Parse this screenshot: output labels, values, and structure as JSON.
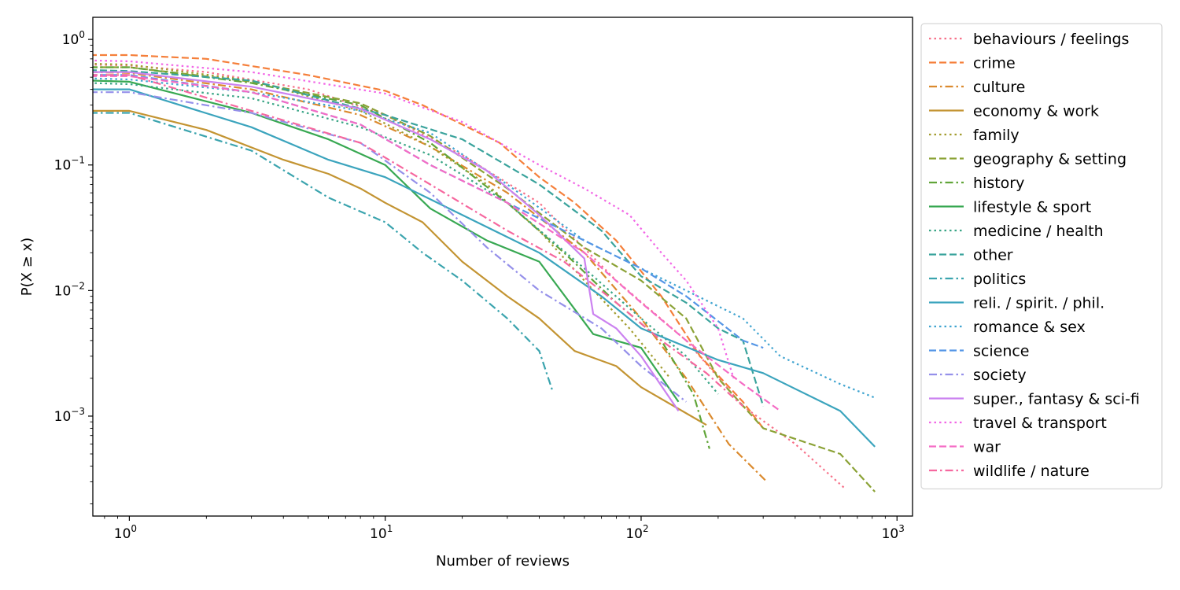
{
  "chart_data": {
    "type": "line",
    "title": "",
    "xlabel": "Number of reviews",
    "ylabel": "P(X ≥ x)",
    "x_scale": "log",
    "y_scale": "log",
    "xlim": [
      0.72,
      1150
    ],
    "ylim": [
      0.00016,
      1.5
    ],
    "x_ticks": [
      {
        "value": 1,
        "base": "10",
        "exp": "0"
      },
      {
        "value": 10,
        "base": "10",
        "exp": "1"
      },
      {
        "value": 100,
        "base": "10",
        "exp": "2"
      },
      {
        "value": 1000,
        "base": "10",
        "exp": "3"
      }
    ],
    "y_ticks": [
      {
        "value": 0.001,
        "base": "10",
        "exp": "−3"
      },
      {
        "value": 0.01,
        "base": "10",
        "exp": "−2"
      },
      {
        "value": 0.1,
        "base": "10",
        "exp": "−1"
      },
      {
        "value": 1,
        "base": "10",
        "exp": "0"
      }
    ],
    "grid": false,
    "legend_position": "outside-right",
    "series": [
      {
        "name": "behaviours / feelings",
        "color": "#f77189",
        "dash": "dotted",
        "points": [
          [
            0.7,
            0.63
          ],
          [
            1,
            0.62
          ],
          [
            2,
            0.55
          ],
          [
            5,
            0.4
          ],
          [
            10,
            0.25
          ],
          [
            20,
            0.12
          ],
          [
            40,
            0.05
          ],
          [
            80,
            0.012
          ],
          [
            150,
            0.004
          ],
          [
            250,
            0.0012
          ],
          [
            400,
            0.0006
          ],
          [
            620,
            0.00027
          ]
        ]
      },
      {
        "name": "crime",
        "color": "#f57f3a",
        "dash": "dashed",
        "points": [
          [
            0.7,
            0.75
          ],
          [
            1,
            0.75
          ],
          [
            2,
            0.7
          ],
          [
            5,
            0.52
          ],
          [
            10,
            0.39
          ],
          [
            14,
            0.3
          ],
          [
            20,
            0.21
          ],
          [
            28,
            0.15
          ],
          [
            40,
            0.08
          ],
          [
            55,
            0.05
          ],
          [
            80,
            0.025
          ],
          [
            120,
            0.009
          ],
          [
            170,
            0.003
          ],
          [
            250,
            0.0013
          ],
          [
            300,
            0.0008
          ]
        ]
      },
      {
        "name": "culture",
        "color": "#db8a2e",
        "dash": "dashdot",
        "points": [
          [
            0.7,
            0.55
          ],
          [
            1,
            0.54
          ],
          [
            3,
            0.4
          ],
          [
            8,
            0.25
          ],
          [
            15,
            0.14
          ],
          [
            30,
            0.06
          ],
          [
            60,
            0.02
          ],
          [
            100,
            0.006
          ],
          [
            150,
            0.002
          ],
          [
            220,
            0.0006
          ],
          [
            310,
            0.0003
          ]
        ]
      },
      {
        "name": "economy & work",
        "color": "#c39432",
        "dash": "solid",
        "points": [
          [
            0.7,
            0.27
          ],
          [
            1,
            0.27
          ],
          [
            2,
            0.19
          ],
          [
            4,
            0.11
          ],
          [
            6,
            0.085
          ],
          [
            8,
            0.065
          ],
          [
            10,
            0.05
          ],
          [
            14,
            0.035
          ],
          [
            20,
            0.017
          ],
          [
            30,
            0.009
          ],
          [
            40,
            0.006
          ],
          [
            55,
            0.0033
          ],
          [
            80,
            0.0025
          ],
          [
            100,
            0.0017
          ],
          [
            180,
            0.00085
          ]
        ]
      },
      {
        "name": "family",
        "color": "#a39d30",
        "dash": "dotted",
        "points": [
          [
            0.7,
            0.64
          ],
          [
            1,
            0.63
          ],
          [
            3,
            0.47
          ],
          [
            8,
            0.27
          ],
          [
            15,
            0.14
          ],
          [
            25,
            0.07
          ],
          [
            40,
            0.03
          ],
          [
            60,
            0.012
          ],
          [
            90,
            0.005
          ],
          [
            130,
            0.002
          ]
        ]
      },
      {
        "name": "geography & setting",
        "color": "#8ba236",
        "dash": "dashed",
        "points": [
          [
            0.7,
            0.6
          ],
          [
            1,
            0.6
          ],
          [
            3,
            0.46
          ],
          [
            8,
            0.31
          ],
          [
            15,
            0.17
          ],
          [
            30,
            0.065
          ],
          [
            60,
            0.022
          ],
          [
            100,
            0.012
          ],
          [
            150,
            0.006
          ],
          [
            200,
            0.002
          ],
          [
            300,
            0.0008
          ],
          [
            600,
            0.0005
          ],
          [
            820,
            0.00025
          ]
        ]
      },
      {
        "name": "history",
        "color": "#61a539",
        "dash": "dashdot",
        "points": [
          [
            0.7,
            0.6
          ],
          [
            1,
            0.6
          ],
          [
            3,
            0.45
          ],
          [
            8,
            0.3
          ],
          [
            15,
            0.15
          ],
          [
            30,
            0.05
          ],
          [
            50,
            0.02
          ],
          [
            80,
            0.008
          ],
          [
            120,
            0.004
          ],
          [
            160,
            0.0015
          ],
          [
            185,
            0.00055
          ]
        ]
      },
      {
        "name": "lifestyle & sport",
        "color": "#38a852",
        "dash": "solid",
        "points": [
          [
            0.7,
            0.47
          ],
          [
            1,
            0.46
          ],
          [
            3,
            0.26
          ],
          [
            6,
            0.16
          ],
          [
            10,
            0.1
          ],
          [
            15,
            0.045
          ],
          [
            25,
            0.025
          ],
          [
            40,
            0.017
          ],
          [
            65,
            0.0045
          ],
          [
            100,
            0.0035
          ],
          [
            140,
            0.0013
          ]
        ]
      },
      {
        "name": "medicine / health",
        "color": "#3aa586",
        "dash": "dotted",
        "points": [
          [
            0.7,
            0.45
          ],
          [
            1,
            0.44
          ],
          [
            3,
            0.34
          ],
          [
            8,
            0.2
          ],
          [
            15,
            0.12
          ],
          [
            30,
            0.05
          ],
          [
            60,
            0.015
          ],
          [
            100,
            0.006
          ],
          [
            150,
            0.003
          ],
          [
            200,
            0.0015
          ]
        ]
      },
      {
        "name": "other",
        "color": "#3aa39c",
        "dash": "dashed",
        "points": [
          [
            0.7,
            0.57
          ],
          [
            1,
            0.56
          ],
          [
            3,
            0.47
          ],
          [
            10,
            0.25
          ],
          [
            20,
            0.16
          ],
          [
            40,
            0.07
          ],
          [
            70,
            0.03
          ],
          [
            100,
            0.013
          ],
          [
            150,
            0.008
          ],
          [
            200,
            0.005
          ],
          [
            250,
            0.004
          ],
          [
            300,
            0.0012
          ]
        ]
      },
      {
        "name": "politics",
        "color": "#3ba4ae",
        "dash": "dashdot",
        "points": [
          [
            0.7,
            0.26
          ],
          [
            1,
            0.26
          ],
          [
            3,
            0.13
          ],
          [
            6,
            0.055
          ],
          [
            10,
            0.035
          ],
          [
            14,
            0.02
          ],
          [
            20,
            0.012
          ],
          [
            30,
            0.006
          ],
          [
            40,
            0.0033
          ],
          [
            45,
            0.0016
          ]
        ]
      },
      {
        "name": "reli. / spirit. / phil.",
        "color": "#3ba4bd",
        "dash": "solid",
        "points": [
          [
            0.7,
            0.4
          ],
          [
            1,
            0.4
          ],
          [
            3,
            0.2
          ],
          [
            6,
            0.11
          ],
          [
            10,
            0.08
          ],
          [
            20,
            0.04
          ],
          [
            40,
            0.02
          ],
          [
            70,
            0.009
          ],
          [
            100,
            0.005
          ],
          [
            200,
            0.0028
          ],
          [
            300,
            0.0022
          ],
          [
            600,
            0.0011
          ],
          [
            820,
            0.00057
          ]
        ]
      },
      {
        "name": "romance & sex",
        "color": "#40a4d0",
        "dash": "dotted",
        "points": [
          [
            0.7,
            0.49
          ],
          [
            1,
            0.48
          ],
          [
            3,
            0.38
          ],
          [
            8,
            0.27
          ],
          [
            15,
            0.18
          ],
          [
            30,
            0.07
          ],
          [
            60,
            0.025
          ],
          [
            100,
            0.015
          ],
          [
            150,
            0.01
          ],
          [
            250,
            0.006
          ],
          [
            350,
            0.003
          ],
          [
            600,
            0.0018
          ],
          [
            820,
            0.0014
          ]
        ]
      },
      {
        "name": "science",
        "color": "#5596e6",
        "dash": "dashed",
        "points": [
          [
            0.7,
            0.52
          ],
          [
            1,
            0.52
          ],
          [
            3,
            0.38
          ],
          [
            8,
            0.21
          ],
          [
            15,
            0.1
          ],
          [
            30,
            0.05
          ],
          [
            60,
            0.025
          ],
          [
            100,
            0.015
          ],
          [
            150,
            0.009
          ],
          [
            250,
            0.004
          ],
          [
            300,
            0.0035
          ]
        ]
      },
      {
        "name": "society",
        "color": "#9590ea",
        "dash": "dashdot",
        "points": [
          [
            0.7,
            0.38
          ],
          [
            1,
            0.38
          ],
          [
            3,
            0.26
          ],
          [
            8,
            0.15
          ],
          [
            15,
            0.06
          ],
          [
            25,
            0.022
          ],
          [
            40,
            0.01
          ],
          [
            70,
            0.005
          ],
          [
            100,
            0.0025
          ],
          [
            150,
            0.0013
          ]
        ]
      },
      {
        "name": "super., fantasy & sci-fi",
        "color": "#cb82f0",
        "dash": "solid",
        "points": [
          [
            0.7,
            0.55
          ],
          [
            1,
            0.55
          ],
          [
            3,
            0.42
          ],
          [
            8,
            0.28
          ],
          [
            15,
            0.16
          ],
          [
            25,
            0.09
          ],
          [
            40,
            0.04
          ],
          [
            60,
            0.018
          ],
          [
            65,
            0.0065
          ],
          [
            80,
            0.005
          ],
          [
            100,
            0.003
          ],
          [
            140,
            0.0011
          ]
        ]
      },
      {
        "name": "travel & transport",
        "color": "#f266e6",
        "dash": "dotted",
        "points": [
          [
            0.7,
            0.68
          ],
          [
            1,
            0.67
          ],
          [
            3,
            0.55
          ],
          [
            10,
            0.37
          ],
          [
            20,
            0.22
          ],
          [
            40,
            0.1
          ],
          [
            60,
            0.065
          ],
          [
            90,
            0.04
          ],
          [
            120,
            0.02
          ],
          [
            150,
            0.012
          ],
          [
            200,
            0.005
          ],
          [
            230,
            0.002
          ]
        ]
      },
      {
        "name": "war",
        "color": "#f56cc5",
        "dash": "dashed",
        "points": [
          [
            0.7,
            0.51
          ],
          [
            1,
            0.51
          ],
          [
            3,
            0.38
          ],
          [
            8,
            0.21
          ],
          [
            15,
            0.1
          ],
          [
            30,
            0.05
          ],
          [
            60,
            0.02
          ],
          [
            100,
            0.008
          ],
          [
            150,
            0.004
          ],
          [
            250,
            0.0018
          ],
          [
            350,
            0.0011
          ]
        ]
      },
      {
        "name": "wildlife / nature",
        "color": "#f6689f",
        "dash": "dashdot",
        "points": [
          [
            0.7,
            0.52
          ],
          [
            1,
            0.52
          ],
          [
            3,
            0.27
          ],
          [
            8,
            0.15
          ],
          [
            15,
            0.07
          ],
          [
            30,
            0.03
          ],
          [
            50,
            0.017
          ],
          [
            80,
            0.008
          ],
          [
            120,
            0.004
          ],
          [
            180,
            0.0022
          ],
          [
            250,
            0.0012
          ]
        ]
      }
    ]
  }
}
